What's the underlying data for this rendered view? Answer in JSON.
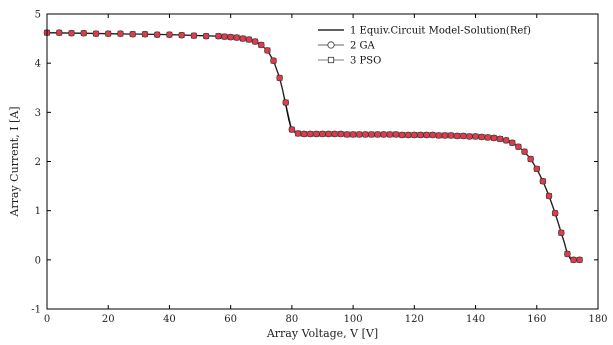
{
  "chart_data": {
    "type": "line",
    "xlabel": "Array Voltage, V [V]",
    "ylabel": "Array Current, I [A]",
    "xlim": [
      0,
      180
    ],
    "ylim": [
      -1,
      5
    ],
    "xticks": [
      0,
      20,
      40,
      60,
      80,
      100,
      120,
      140,
      160,
      180
    ],
    "yticks": [
      -1,
      0,
      1,
      2,
      3,
      4,
      5
    ],
    "grid": false,
    "legend_position": "top-right",
    "series": [
      {
        "name": "1 Equiv.Circuit Model-Solution(Ref)",
        "style": "line",
        "color": "#000000",
        "x": [
          0,
          10,
          20,
          30,
          40,
          50,
          55,
          60,
          63,
          66,
          68,
          70,
          72,
          74,
          76,
          77,
          78,
          79,
          80,
          82,
          85,
          90,
          100,
          110,
          120,
          130,
          140,
          145,
          148,
          150,
          152,
          154,
          156,
          158,
          160,
          162,
          164,
          166,
          167,
          168,
          169,
          170,
          171,
          172,
          173,
          174
        ],
        "y": [
          4.62,
          4.61,
          4.6,
          4.59,
          4.58,
          4.56,
          4.55,
          4.53,
          4.51,
          4.48,
          4.44,
          4.37,
          4.26,
          4.05,
          3.7,
          3.45,
          3.15,
          2.85,
          2.62,
          2.57,
          2.56,
          2.56,
          2.55,
          2.55,
          2.54,
          2.53,
          2.51,
          2.49,
          2.46,
          2.43,
          2.38,
          2.3,
          2.2,
          2.05,
          1.85,
          1.6,
          1.3,
          0.95,
          0.75,
          0.55,
          0.35,
          0.12,
          0.02,
          0.0,
          0.0,
          0.0
        ]
      },
      {
        "name": "2 GA",
        "style": "markers-circle",
        "color": "#333333",
        "fill": "#e23a4a",
        "x": [
          0,
          4,
          8,
          12,
          16,
          20,
          24,
          28,
          32,
          36,
          40,
          44,
          48,
          52,
          56,
          58,
          60,
          62,
          64,
          66,
          68,
          70,
          72,
          74,
          76,
          78,
          80,
          82,
          84,
          86,
          88,
          90,
          92,
          94,
          96,
          98,
          100,
          102,
          104,
          106,
          108,
          110,
          112,
          114,
          116,
          118,
          120,
          122,
          124,
          126,
          128,
          130,
          132,
          134,
          136,
          138,
          140,
          142,
          144,
          146,
          148,
          150,
          152,
          154,
          156,
          158,
          160,
          162,
          164,
          166,
          168,
          170,
          172,
          174
        ],
        "y": [
          4.62,
          4.62,
          4.61,
          4.61,
          4.6,
          4.6,
          4.6,
          4.59,
          4.59,
          4.58,
          4.58,
          4.57,
          4.56,
          4.55,
          4.55,
          4.54,
          4.53,
          4.52,
          4.5,
          4.48,
          4.44,
          4.37,
          4.26,
          4.05,
          3.7,
          3.2,
          2.65,
          2.57,
          2.56,
          2.56,
          2.56,
          2.56,
          2.56,
          2.56,
          2.56,
          2.55,
          2.55,
          2.55,
          2.55,
          2.55,
          2.55,
          2.55,
          2.55,
          2.55,
          2.54,
          2.54,
          2.54,
          2.54,
          2.54,
          2.54,
          2.53,
          2.53,
          2.53,
          2.52,
          2.52,
          2.51,
          2.51,
          2.5,
          2.49,
          2.48,
          2.46,
          2.43,
          2.38,
          2.3,
          2.2,
          2.05,
          1.85,
          1.6,
          1.3,
          0.95,
          0.55,
          0.12,
          0.0,
          0.0
        ]
      },
      {
        "name": "3 PSO",
        "style": "markers-square",
        "color": "#555555",
        "fill": "#b0b0b0",
        "x": [
          0,
          4,
          8,
          12,
          16,
          20,
          24,
          28,
          32,
          36,
          40,
          44,
          48,
          52,
          56,
          58,
          60,
          62,
          64,
          66,
          68,
          70,
          72,
          74,
          76,
          78,
          80,
          82,
          84,
          86,
          88,
          90,
          92,
          94,
          96,
          98,
          100,
          102,
          104,
          106,
          108,
          110,
          112,
          114,
          116,
          118,
          120,
          122,
          124,
          126,
          128,
          130,
          132,
          134,
          136,
          138,
          140,
          142,
          144,
          146,
          148,
          150,
          152,
          154,
          156,
          158,
          160,
          162,
          164,
          166,
          168,
          170,
          172,
          174
        ],
        "y": [
          4.62,
          4.62,
          4.61,
          4.61,
          4.6,
          4.6,
          4.6,
          4.59,
          4.59,
          4.58,
          4.58,
          4.57,
          4.56,
          4.55,
          4.55,
          4.54,
          4.53,
          4.52,
          4.5,
          4.48,
          4.44,
          4.37,
          4.26,
          4.05,
          3.7,
          3.2,
          2.65,
          2.57,
          2.56,
          2.56,
          2.56,
          2.56,
          2.56,
          2.56,
          2.56,
          2.55,
          2.55,
          2.55,
          2.55,
          2.55,
          2.55,
          2.55,
          2.55,
          2.55,
          2.54,
          2.54,
          2.54,
          2.54,
          2.54,
          2.54,
          2.53,
          2.53,
          2.53,
          2.52,
          2.52,
          2.51,
          2.51,
          2.5,
          2.49,
          2.48,
          2.46,
          2.43,
          2.38,
          2.3,
          2.2,
          2.05,
          1.85,
          1.6,
          1.3,
          0.95,
          0.55,
          0.12,
          0.0,
          0.0
        ]
      }
    ]
  }
}
